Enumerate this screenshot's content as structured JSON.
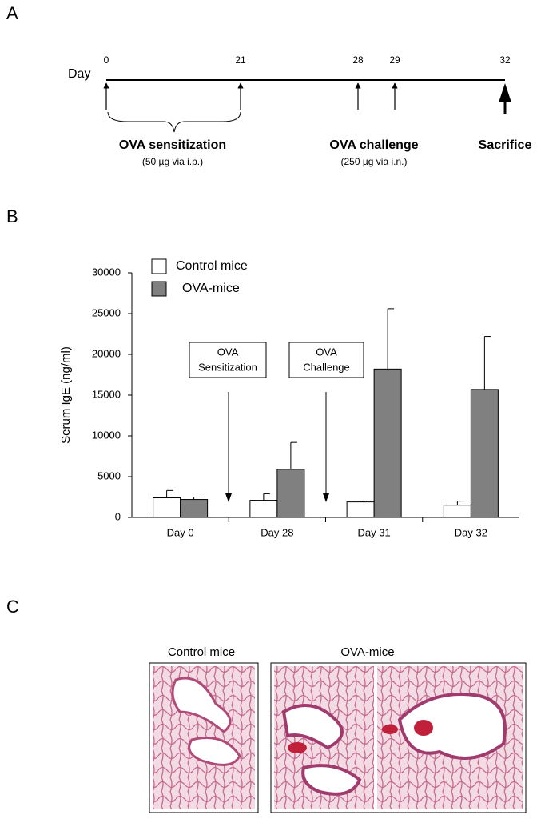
{
  "panel_labels": [
    "A",
    "B",
    "C"
  ],
  "timeline": {
    "axis_label": "Day",
    "days": [
      "0",
      "21",
      "28",
      "29",
      "32"
    ],
    "events": [
      {
        "title": "OVA sensitization",
        "detail": "(50 µg via i.p.)"
      },
      {
        "title": "OVA challenge",
        "detail": "(250 µg via i.n.)"
      },
      {
        "title": "Sacrifice"
      }
    ]
  },
  "chart_data": {
    "type": "bar",
    "y_label": "Serum IgE (ng/ml)",
    "categories": [
      "Day 0",
      "Day 28",
      "Day 31",
      "Day 32"
    ],
    "series": [
      {
        "name": "Control mice",
        "color": "#ffffff",
        "values": [
          2400,
          2100,
          1900,
          1500
        ],
        "errors": [
          900,
          800,
          100,
          500
        ]
      },
      {
        "name": "OVA-mice",
        "color": "#808080",
        "values": [
          2200,
          5900,
          18200,
          15700
        ],
        "errors": [
          300,
          3300,
          7400,
          6500
        ]
      }
    ],
    "ylim": [
      0,
      30000
    ],
    "yticks": [
      0,
      5000,
      10000,
      15000,
      20000,
      25000,
      30000
    ],
    "legend": "top-left",
    "annotations": [
      {
        "lines": [
          "OVA",
          "Sensitization"
        ]
      },
      {
        "lines": [
          "OVA",
          "Challenge"
        ]
      }
    ]
  },
  "histology": {
    "labels": [
      "Control mice",
      "OVA-mice"
    ]
  }
}
